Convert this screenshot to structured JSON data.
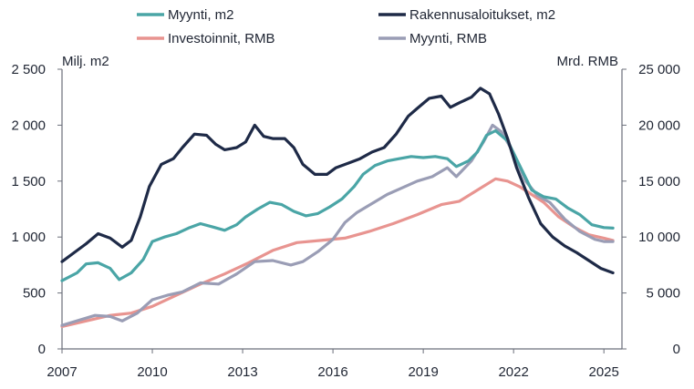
{
  "chart_data": {
    "type": "line",
    "left_axis_label": "Milj. m2",
    "right_axis_label": "Mrd. RMB",
    "y_left_lim": [
      0,
      2500
    ],
    "y_right_lim": [
      0,
      25000
    ],
    "y_left_ticks": [
      "0",
      "500",
      "1 000",
      "1 500",
      "2 000",
      "2 500"
    ],
    "y_right_ticks": [
      "0",
      "5 000",
      "10 000",
      "15 000",
      "20 000",
      "25 000"
    ],
    "x_lim": [
      2007,
      2025.6
    ],
    "x_ticks": [
      "2007",
      "2010",
      "2013",
      "2016",
      "2019",
      "2022",
      "2025"
    ],
    "x_tick_values": [
      2007,
      2010,
      2013,
      2016,
      2019,
      2022,
      2025
    ],
    "grid": false,
    "legend_position": "top",
    "series": [
      {
        "name": "Myynti, m2",
        "axis": "left",
        "color": "#4aa5a6",
        "x": [
          2007.0,
          2007.5,
          2007.8,
          2008.2,
          2008.6,
          2008.9,
          2009.3,
          2009.7,
          2010.0,
          2010.4,
          2010.8,
          2011.2,
          2011.6,
          2012.0,
          2012.4,
          2012.8,
          2013.1,
          2013.5,
          2013.9,
          2014.3,
          2014.7,
          2015.1,
          2015.5,
          2015.9,
          2016.3,
          2016.7,
          2017.0,
          2017.4,
          2017.8,
          2018.2,
          2018.6,
          2019.0,
          2019.4,
          2019.8,
          2020.1,
          2020.5,
          2020.8,
          2021.1,
          2021.4,
          2021.8,
          2022.2,
          2022.6,
          2023.0,
          2023.4,
          2023.8,
          2024.2,
          2024.6,
          2025.0,
          2025.3
        ],
        "values": [
          610,
          680,
          760,
          770,
          720,
          620,
          680,
          800,
          960,
          1000,
          1030,
          1080,
          1120,
          1090,
          1060,
          1110,
          1180,
          1250,
          1310,
          1290,
          1230,
          1190,
          1210,
          1270,
          1340,
          1450,
          1560,
          1640,
          1680,
          1700,
          1720,
          1710,
          1720,
          1700,
          1630,
          1680,
          1760,
          1910,
          1950,
          1860,
          1640,
          1420,
          1360,
          1340,
          1260,
          1200,
          1110,
          1085,
          1080
        ]
      },
      {
        "name": "Rakennusaloitukset, m2",
        "axis": "left",
        "color": "#1e2a47",
        "x": [
          2007.0,
          2007.4,
          2007.8,
          2008.2,
          2008.6,
          2009.0,
          2009.3,
          2009.6,
          2009.9,
          2010.3,
          2010.7,
          2011.0,
          2011.4,
          2011.8,
          2012.1,
          2012.4,
          2012.8,
          2013.1,
          2013.4,
          2013.7,
          2014.0,
          2014.4,
          2014.7,
          2015.0,
          2015.4,
          2015.8,
          2016.1,
          2016.5,
          2016.9,
          2017.3,
          2017.7,
          2018.1,
          2018.5,
          2018.8,
          2019.2,
          2019.6,
          2019.9,
          2020.2,
          2020.6,
          2020.9,
          2021.2,
          2021.5,
          2021.8,
          2022.1,
          2022.5,
          2022.9,
          2023.3,
          2023.7,
          2024.1,
          2024.5,
          2024.9,
          2025.3
        ],
        "values": [
          780,
          860,
          940,
          1030,
          990,
          910,
          970,
          1180,
          1450,
          1650,
          1700,
          1800,
          1920,
          1910,
          1830,
          1780,
          1800,
          1850,
          2000,
          1900,
          1880,
          1880,
          1800,
          1650,
          1560,
          1560,
          1620,
          1660,
          1700,
          1760,
          1800,
          1920,
          2080,
          2150,
          2240,
          2260,
          2160,
          2200,
          2250,
          2330,
          2280,
          2100,
          1880,
          1620,
          1350,
          1120,
          1000,
          920,
          860,
          790,
          720,
          680
        ]
      },
      {
        "name": "Investoinnit, RMB",
        "axis": "right",
        "color": "#e89490",
        "x": [
          2007.0,
          2007.8,
          2008.6,
          2009.3,
          2010.0,
          2010.8,
          2011.6,
          2012.4,
          2013.2,
          2014.0,
          2014.8,
          2015.6,
          2016.4,
          2017.2,
          2018.0,
          2018.8,
          2019.6,
          2020.2,
          2020.8,
          2021.4,
          2021.8,
          2022.2,
          2022.6,
          2023.0,
          2023.5,
          2024.0,
          2024.5,
          2025.0,
          2025.3
        ],
        "values": [
          2000,
          2500,
          3000,
          3200,
          3800,
          4800,
          5800,
          6700,
          7700,
          8800,
          9500,
          9700,
          9900,
          10500,
          11200,
          12000,
          12900,
          13200,
          14200,
          15200,
          15000,
          14500,
          13800,
          13100,
          11800,
          10900,
          10200,
          9900,
          9700
        ]
      },
      {
        "name": "Myynti, RMB",
        "axis": "right",
        "color": "#9a9db5",
        "x": [
          2007.0,
          2007.6,
          2008.1,
          2008.6,
          2009.0,
          2009.5,
          2010.0,
          2010.5,
          2011.0,
          2011.6,
          2012.2,
          2012.8,
          2013.4,
          2014.0,
          2014.6,
          2015.0,
          2015.5,
          2016.0,
          2016.4,
          2016.8,
          2017.3,
          2017.8,
          2018.3,
          2018.8,
          2019.3,
          2019.8,
          2020.1,
          2020.6,
          2021.0,
          2021.3,
          2021.6,
          2022.0,
          2022.4,
          2022.8,
          2023.2,
          2023.7,
          2024.2,
          2024.7,
          2025.0,
          2025.3
        ],
        "values": [
          2100,
          2600,
          3000,
          2900,
          2500,
          3200,
          4400,
          4800,
          5100,
          5900,
          5800,
          6700,
          7800,
          7900,
          7500,
          7800,
          8700,
          9800,
          11300,
          12200,
          13000,
          13800,
          14400,
          15000,
          15400,
          16200,
          15400,
          16800,
          18500,
          20000,
          19400,
          17500,
          15000,
          13700,
          13100,
          11600,
          10500,
          9800,
          9600,
          9600
        ]
      }
    ]
  }
}
